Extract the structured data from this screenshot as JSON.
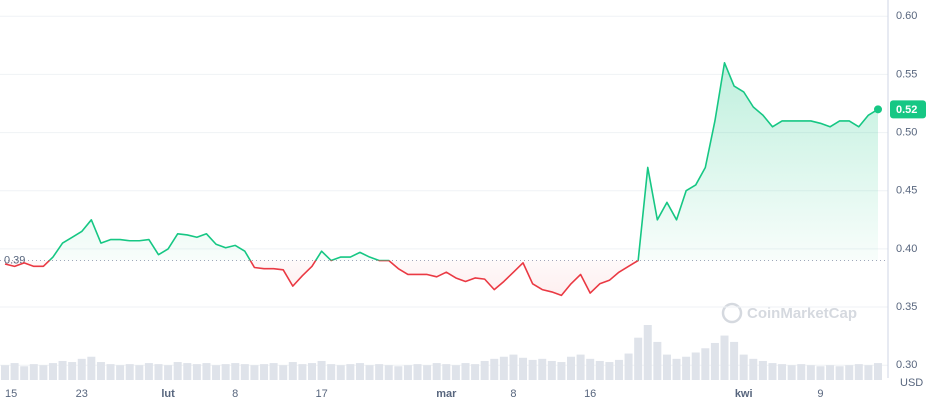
{
  "chart_data": {
    "type": "line",
    "categories": [
      "15",
      null,
      null,
      null,
      null,
      null,
      null,
      null,
      "23",
      null,
      null,
      null,
      null,
      null,
      null,
      null,
      null,
      "lut",
      null,
      null,
      null,
      null,
      null,
      null,
      "8",
      null,
      null,
      null,
      null,
      null,
      null,
      null,
      null,
      "17",
      null,
      null,
      null,
      null,
      null,
      null,
      null,
      null,
      null,
      null,
      null,
      null,
      "mar",
      null,
      null,
      null,
      null,
      null,
      null,
      "8",
      null,
      null,
      null,
      null,
      null,
      null,
      null,
      "16",
      null,
      null,
      null,
      null,
      null,
      null,
      null,
      null,
      null,
      null,
      null,
      null,
      null,
      null,
      null,
      "kwi",
      null,
      null,
      null,
      null,
      null,
      null,
      null,
      "9",
      null,
      null,
      null,
      null,
      null,
      null
    ],
    "values": [
      0.387,
      0.385,
      0.388,
      0.385,
      0.385,
      0.393,
      0.405,
      0.41,
      0.415,
      0.425,
      0.405,
      0.408,
      0.408,
      0.407,
      0.407,
      0.408,
      0.395,
      0.4,
      0.413,
      0.412,
      0.41,
      0.413,
      0.404,
      0.401,
      0.403,
      0.398,
      0.384,
      0.383,
      0.383,
      0.382,
      0.368,
      0.377,
      0.385,
      0.398,
      0.39,
      0.393,
      0.393,
      0.397,
      0.393,
      0.39,
      0.39,
      0.383,
      0.378,
      0.378,
      0.378,
      0.376,
      0.38,
      0.375,
      0.372,
      0.375,
      0.374,
      0.365,
      0.372,
      0.38,
      0.388,
      0.37,
      0.365,
      0.363,
      0.36,
      0.37,
      0.378,
      0.362,
      0.37,
      0.373,
      0.38,
      0.385,
      0.39,
      0.47,
      0.425,
      0.44,
      0.425,
      0.45,
      0.455,
      0.47,
      0.51,
      0.56,
      0.54,
      0.535,
      0.522,
      0.515,
      0.505,
      0.51,
      0.51,
      0.51,
      0.51,
      0.508,
      0.505,
      0.51,
      0.51,
      0.505,
      0.515,
      0.52
    ],
    "volume": [
      14,
      16,
      13,
      15,
      14,
      16,
      18,
      17,
      20,
      22,
      17,
      15,
      14,
      15,
      14,
      16,
      15,
      14,
      17,
      16,
      15,
      16,
      14,
      15,
      16,
      15,
      14,
      15,
      16,
      14,
      17,
      15,
      16,
      18,
      15,
      14,
      15,
      16,
      14,
      15,
      14,
      13,
      14,
      15,
      14,
      16,
      15,
      14,
      16,
      15,
      18,
      20,
      22,
      24,
      21,
      19,
      20,
      18,
      17,
      22,
      24,
      20,
      18,
      17,
      19,
      25,
      40,
      52,
      36,
      24,
      20,
      22,
      26,
      30,
      35,
      42,
      36,
      24,
      20,
      18,
      16,
      15,
      14,
      15,
      14,
      13,
      14,
      13,
      14,
      15,
      14,
      16
    ],
    "baseline": 0.39,
    "up_color": "#16c784",
    "down_color": "#ea3943",
    "ylim": [
      0.289,
      0.614
    ],
    "yticks": [
      {
        "value": 0.3,
        "label": "0.30"
      },
      0.35,
      {
        "value": 0.4,
        "label": "0.40"
      },
      0.45,
      {
        "value": 0.5,
        "label": "0.50"
      },
      0.55,
      {
        "value": 0.6,
        "label": "0.60"
      }
    ],
    "grid": true,
    "currency": "USD",
    "watermark": "CoinMarketCap"
  }
}
